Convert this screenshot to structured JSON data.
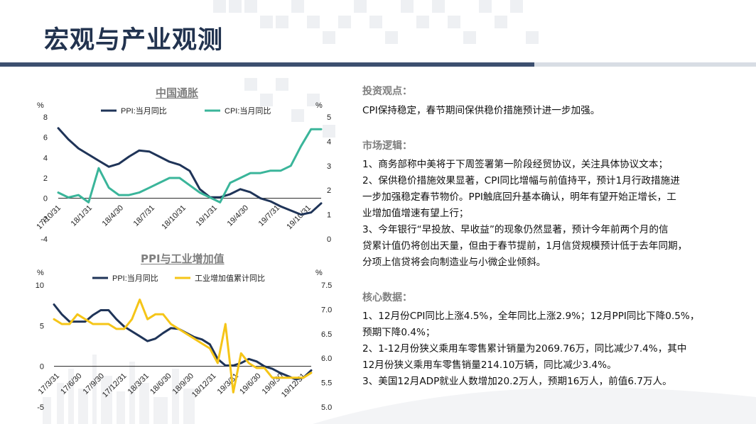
{
  "page": {
    "title": "宏观与产业观测"
  },
  "colors": {
    "navy": "#1f3458",
    "teal": "#3ab59a",
    "yellow": "#f5c518",
    "gray_title": "#7f7f7f"
  },
  "chart_data": [
    {
      "type": "line",
      "title": "中国通胀",
      "y_unit_left": "%",
      "y_unit_right": "%",
      "ylim_left": [
        -4,
        8
      ],
      "ylim_right": [
        0,
        5
      ],
      "yticks_left": [
        "8",
        "6",
        "4",
        "2",
        "0",
        "-2",
        "-4"
      ],
      "yticks_right": [
        "5",
        "4",
        "3",
        "2",
        "1",
        "0"
      ],
      "x_tick_labels": [
        "17/10/31",
        "18/1/31",
        "18/4/30",
        "18/7/31",
        "18/10/31",
        "19/1/31",
        "19/4/30",
        "19/7/31",
        "19/10/31"
      ],
      "series": [
        {
          "name": "PPI:当月同比",
          "axis": "left",
          "color": "#1f3458",
          "values": [
            6.9,
            5.8,
            4.9,
            4.3,
            3.7,
            3.1,
            3.4,
            4.1,
            4.7,
            4.6,
            4.1,
            3.6,
            3.3,
            2.7,
            0.9,
            0.1,
            0.1,
            0.4,
            0.9,
            0.6,
            0.0,
            -0.3,
            -0.8,
            -1.2,
            -1.6,
            -1.4,
            -0.5
          ]
        },
        {
          "name": "CPI:当月同比",
          "axis": "right",
          "color": "#3ab59a",
          "values": [
            1.9,
            1.7,
            1.8,
            1.5,
            2.9,
            2.1,
            1.8,
            1.8,
            1.9,
            2.1,
            2.3,
            2.5,
            2.5,
            2.2,
            1.9,
            1.7,
            1.5,
            2.3,
            2.5,
            2.7,
            2.7,
            2.8,
            2.8,
            3.0,
            3.8,
            4.5,
            4.5
          ]
        }
      ]
    },
    {
      "type": "line",
      "title": "PPI与工业增加值",
      "y_unit_left": "%",
      "y_unit_right": "%",
      "ylim_left": [
        -5,
        10
      ],
      "ylim_right": [
        5.0,
        7.5
      ],
      "yticks_left": [
        "10",
        "5",
        "0",
        "-5"
      ],
      "yticks_right": [
        "7.5",
        "7.0",
        "6.5",
        "6.0",
        "5.5",
        "5.0"
      ],
      "x_tick_labels": [
        "17/3/31",
        "17/6/30",
        "17/9/30",
        "17/12/31",
        "18/3/31",
        "18/6/30",
        "18/9/30",
        "18/12/31",
        "19/3/31",
        "19/6/30",
        "19/9/30",
        "19/12/31"
      ],
      "series": [
        {
          "name": "PPI:当月同比",
          "axis": "left",
          "color": "#1f3458",
          "values": [
            7.6,
            6.4,
            5.5,
            5.5,
            5.5,
            6.3,
            6.9,
            6.9,
            5.8,
            4.9,
            4.3,
            3.7,
            3.1,
            3.4,
            4.1,
            4.7,
            4.6,
            4.1,
            3.6,
            3.3,
            2.7,
            0.9,
            0.1,
            0.1,
            0.4,
            0.9,
            0.6,
            0.0,
            -0.3,
            -0.8,
            -1.2,
            -1.6,
            -1.4,
            -0.5
          ]
        },
        {
          "name": "工业增加值累计同比",
          "axis": "right",
          "color": "#f5c518",
          "values": [
            6.8,
            6.7,
            6.7,
            6.9,
            6.8,
            6.7,
            6.7,
            6.7,
            6.6,
            6.6,
            6.8,
            7.2,
            6.8,
            6.9,
            6.9,
            6.7,
            6.6,
            6.5,
            6.4,
            6.3,
            6.2,
            5.9,
            6.7,
            5.3,
            6.1,
            5.9,
            5.8,
            5.8,
            5.6,
            5.6,
            5.6,
            5.6,
            5.6,
            5.7
          ]
        }
      ]
    }
  ],
  "right_panel": {
    "view_title": "投资观点：",
    "view_text": "CPI保持稳定，春节期间保供稳价措施预计进一步加强。",
    "logic_title": "市场逻辑：",
    "logic_1": "1、商务部称中美将于下周签署第一阶段经贸协议，关注具体协议文本；",
    "logic_2_a": "2、保供稳价措施效果显著，CPI同比增幅与前值持平，预计1月行政措施进",
    "logic_2_b": "一步加强稳定春节物价。PPI触底回升基本确认，明年有望开始正增长，工",
    "logic_2_c": "业增加值增速有望上行；",
    "logic_3_a": "3、今年银行“早投放、早收益”的现象仍然显著，预计今年前两个月的信",
    "logic_3_b": "贷累计值仍将创出天量，但由于春节提前，1月信贷规模预计低于去年同期，",
    "logic_3_c": "分项上信贷将会向制造业与小微企业倾斜。",
    "data_title": "核心数据：",
    "data_1_a": "1、12月份CPI同比上涨4.5%，全年同比上涨2.9%；12月PPI同比下降0.5%，",
    "data_1_b": "预期下降0.4%；",
    "data_2_a": "2、1-12月份狭义乘用车零售累计销量为2069.76万，同比减少7.4%，其中",
    "data_2_b": "12月份狭义乘用车零售销量214.10万辆，同比减少3.4%。",
    "data_3": "3、美国12月ADP就业人数增加20.2万人，预期16万人，前值6.7万人。"
  }
}
